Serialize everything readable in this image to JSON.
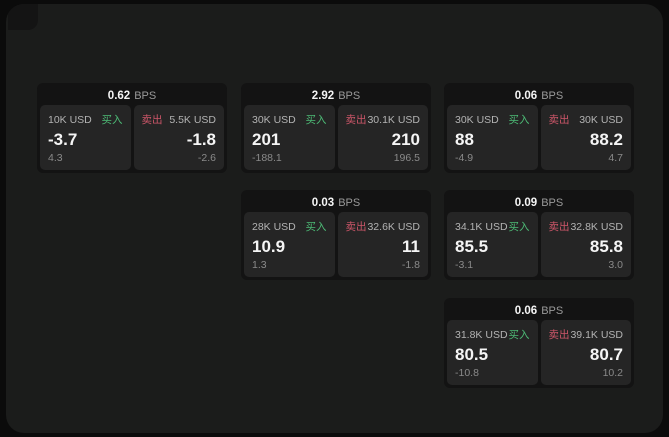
{
  "colors": {
    "page_bg": "#0b0b0b",
    "window_bg": "#1b1c1b",
    "card_bg": "#131313",
    "panel_bg": "#252525",
    "text_primary": "#f5f5f5",
    "text_secondary": "#b3b3b3",
    "text_dim": "#8a8a8a",
    "buy_green": "#4dbb76",
    "sell_red": "#cd5669"
  },
  "labels": {
    "bps_unit": "BPS",
    "buy": "买入",
    "sell": "卖出"
  },
  "cards": [
    {
      "bps": "0.62",
      "buy": {
        "size": "10K USD",
        "price": "-3.7",
        "delta": "4.3"
      },
      "sell": {
        "size": "5.5K USD",
        "price": "-1.8",
        "delta": "-2.6"
      }
    },
    {
      "bps": "2.92",
      "buy": {
        "size": "30K USD",
        "price": "201",
        "delta": "-188.1"
      },
      "sell": {
        "size": "30.1K USD",
        "price": "210",
        "delta": "196.5"
      }
    },
    {
      "bps": "0.06",
      "buy": {
        "size": "30K USD",
        "price": "88",
        "delta": "-4.9"
      },
      "sell": {
        "size": "30K USD",
        "price": "88.2",
        "delta": "4.7"
      }
    },
    {
      "bps": "0.03",
      "buy": {
        "size": "28K USD",
        "price": "10.9",
        "delta": "1.3"
      },
      "sell": {
        "size": "32.6K USD",
        "price": "11",
        "delta": "-1.8"
      }
    },
    {
      "bps": "0.09",
      "buy": {
        "size": "34.1K USD",
        "price": "85.5",
        "delta": "-3.1"
      },
      "sell": {
        "size": "32.8K USD",
        "price": "85.8",
        "delta": "3.0"
      }
    },
    {
      "bps": "0.06",
      "buy": {
        "size": "31.8K USD",
        "price": "80.5",
        "delta": "-10.8"
      },
      "sell": {
        "size": "39.1K USD",
        "price": "80.7",
        "delta": "10.2"
      }
    }
  ]
}
